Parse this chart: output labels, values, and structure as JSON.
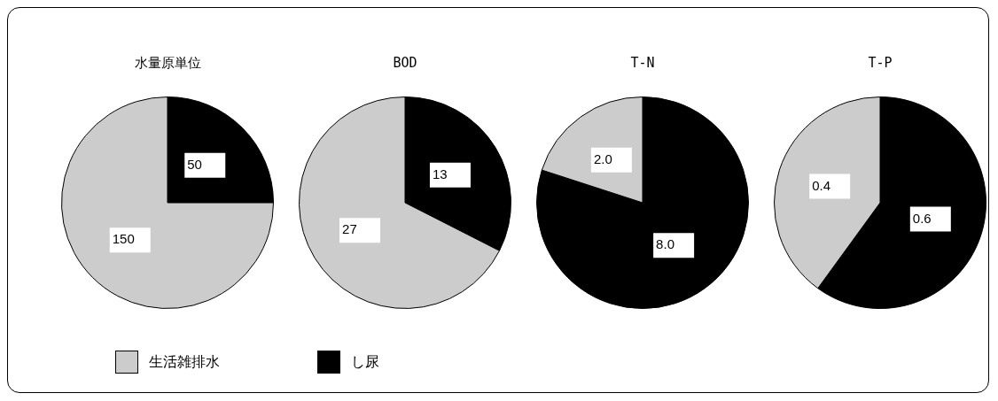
{
  "chart_data": [
    {
      "type": "pie",
      "title": "水量原単位",
      "categories": [
        "し尿",
        "生活雑排水"
      ],
      "values": [
        50,
        150
      ],
      "colors": [
        "#000000",
        "#cccccc"
      ],
      "value_labels": [
        "50",
        "150"
      ],
      "legend": "bottom"
    },
    {
      "type": "pie",
      "title": "BOD",
      "categories": [
        null,
        null
      ],
      "values": [
        13,
        27
      ],
      "colors": [
        "#000000",
        "#cccccc"
      ],
      "value_labels": [
        "13",
        "27"
      ]
    },
    {
      "type": "pie",
      "title": "T-N",
      "categories": [
        null,
        null
      ],
      "values": [
        8.0,
        2.0
      ],
      "colors": [
        "#000000",
        "#cccccc"
      ],
      "value_labels": [
        "8.0",
        "2.0"
      ]
    },
    {
      "type": "pie",
      "title": "T-P",
      "categories": [
        null,
        null
      ],
      "values": [
        0.6,
        0.4
      ],
      "colors": [
        "#000000",
        "#cccccc"
      ],
      "value_labels": [
        "0.6",
        "0.4"
      ]
    }
  ]
}
